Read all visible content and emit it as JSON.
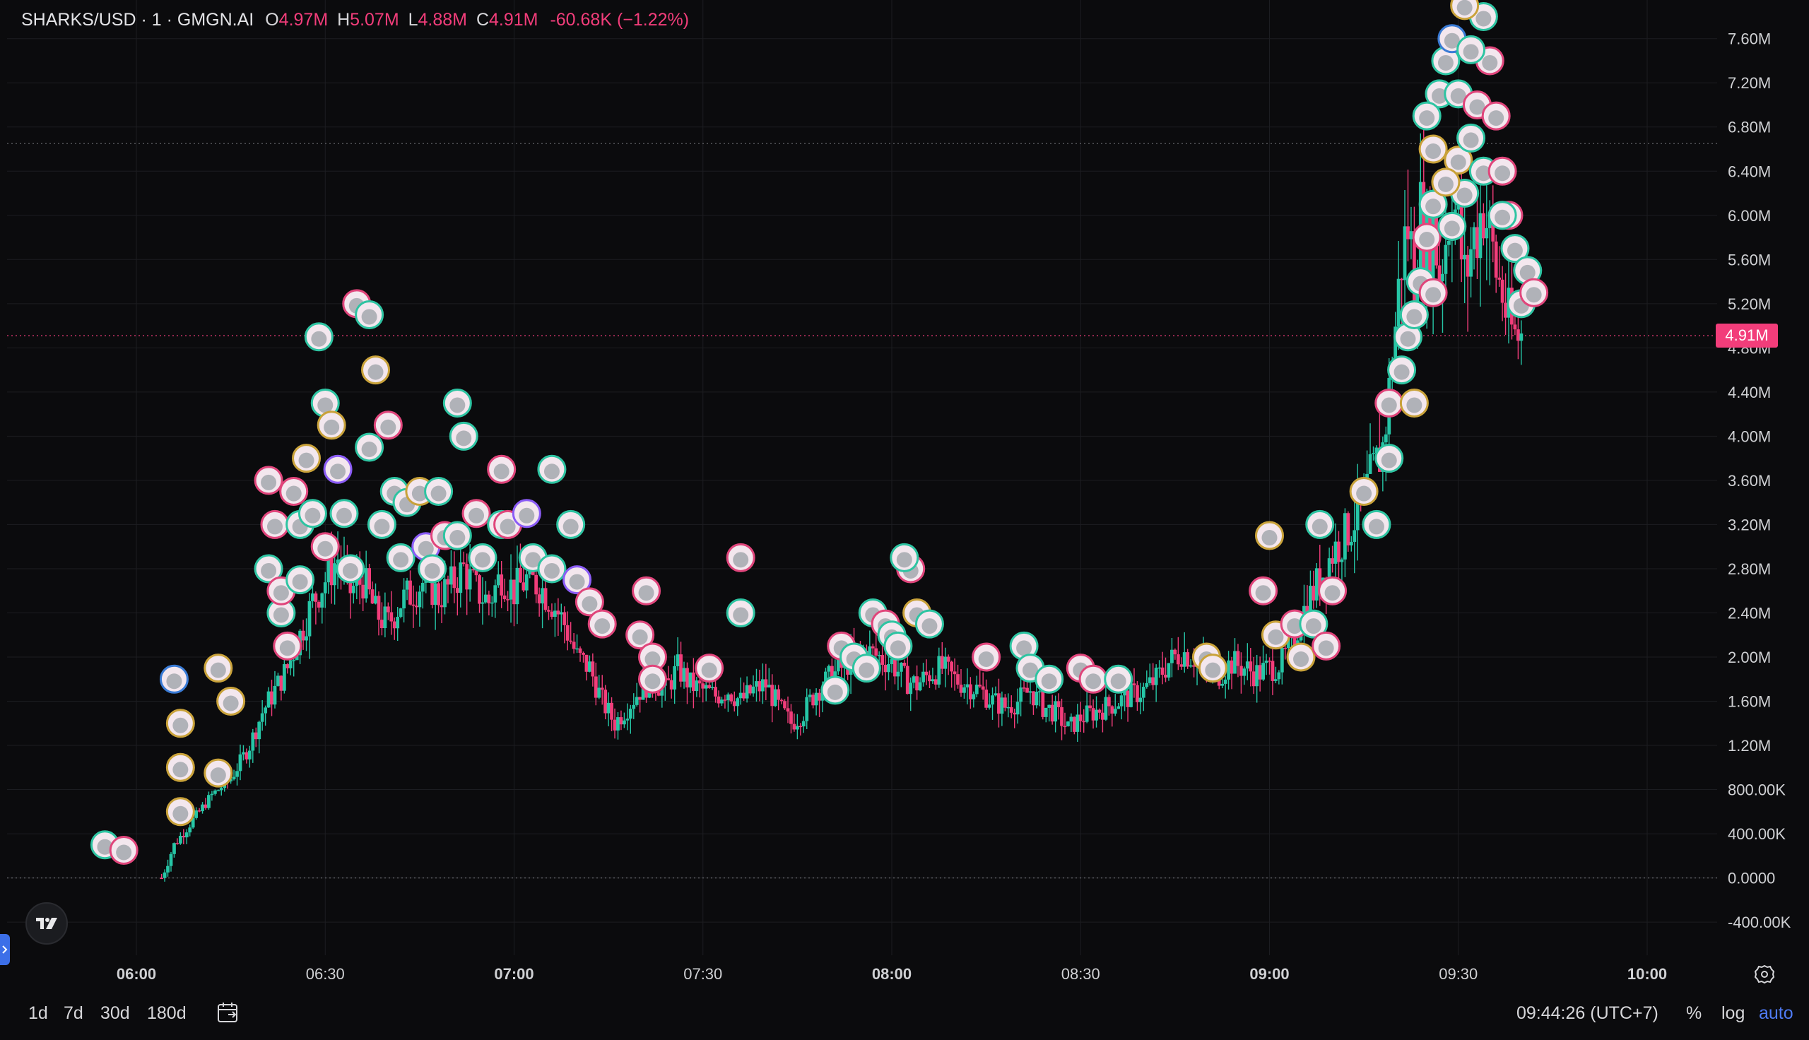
{
  "header": {
    "symbol": "SHARKS/USD · 1 · GMGN.AI",
    "open_label": "O",
    "open_value": "4.97M",
    "high_label": "H",
    "high_value": "5.07M",
    "low_label": "L",
    "low_value": "4.88M",
    "close_label": "C",
    "close_value": "4.91M",
    "change": "-60.68K (−1.22%)"
  },
  "last_price_tag": "4.91M",
  "bottom": {
    "ranges": [
      "1d",
      "7d",
      "30d",
      "180d"
    ],
    "clock": "09:44:26 (UTC+7)",
    "percent": "%",
    "log": "log",
    "auto": "auto"
  },
  "colors": {
    "up": "#26c6a6",
    "down": "#f23d7a",
    "background": "#0b0b0d",
    "accent": "#4f7bf5"
  },
  "icons": [
    "tradingview-logo-icon",
    "calendar-goto-icon",
    "settings-gear-icon",
    "sidebar-toggle-icon"
  ],
  "chart_data": {
    "type": "candlestick",
    "title": "SHARKS/USD · 1 · GMGN.AI",
    "interval": "1 minute",
    "y_ticks": [
      "7.60M",
      "7.20M",
      "6.80M",
      "6.40M",
      "6.00M",
      "5.60M",
      "5.20M",
      "4.80M",
      "4.40M",
      "4.00M",
      "3.60M",
      "3.20M",
      "2.80M",
      "2.40M",
      "2.00M",
      "1.60M",
      "1.20M",
      "800.00K",
      "400.00K",
      "0.0000",
      "-400.00K"
    ],
    "y_tick_values": [
      7.6,
      7.2,
      6.8,
      6.4,
      6.0,
      5.6,
      5.2,
      4.8,
      4.4,
      4.0,
      3.6,
      3.2,
      2.8,
      2.4,
      2.0,
      1.6,
      1.2,
      0.8,
      0.4,
      0.0,
      -0.4
    ],
    "x_ticks": [
      "06:00",
      "06:30",
      "07:00",
      "07:30",
      "08:00",
      "08:30",
      "09:00",
      "09:30",
      "10:00"
    ],
    "x_ticks_bold": [
      true,
      false,
      true,
      false,
      true,
      false,
      true,
      false,
      true
    ],
    "x_tick_minutes": [
      360,
      390,
      420,
      450,
      480,
      510,
      540,
      570,
      600
    ],
    "ylim_millions": [
      -0.7,
      7.95
    ],
    "xlim_minutes": [
      340.5,
      611.5
    ],
    "last_price_millions": 4.91,
    "high_line_millions": 6.65,
    "grid": true,
    "price_path": [
      [
        364,
        0.0
      ],
      [
        366,
        0.3
      ],
      [
        368,
        0.45
      ],
      [
        370,
        0.6
      ],
      [
        372,
        0.75
      ],
      [
        375,
        0.9
      ],
      [
        378,
        1.2
      ],
      [
        380,
        1.5
      ],
      [
        382,
        1.7
      ],
      [
        384,
        1.9
      ],
      [
        386,
        2.2
      ],
      [
        388,
        2.5
      ],
      [
        390,
        2.7
      ],
      [
        392,
        2.9
      ],
      [
        394,
        2.6
      ],
      [
        396,
        2.7
      ],
      [
        398,
        2.4
      ],
      [
        400,
        2.3
      ],
      [
        402,
        2.5
      ],
      [
        404,
        2.6
      ],
      [
        406,
        2.7
      ],
      [
        408,
        2.55
      ],
      [
        410,
        2.65
      ],
      [
        412,
        2.8
      ],
      [
        414,
        2.6
      ],
      [
        416,
        2.5
      ],
      [
        418,
        2.75
      ],
      [
        420,
        2.6
      ],
      [
        422,
        2.7
      ],
      [
        424,
        2.65
      ],
      [
        426,
        2.5
      ],
      [
        428,
        2.3
      ],
      [
        430,
        2.0
      ],
      [
        432,
        1.9
      ],
      [
        434,
        1.6
      ],
      [
        436,
        1.4
      ],
      [
        438,
        1.55
      ],
      [
        440,
        1.7
      ],
      [
        442,
        1.8
      ],
      [
        444,
        1.7
      ],
      [
        446,
        1.9
      ],
      [
        448,
        1.75
      ],
      [
        450,
        1.7
      ],
      [
        452,
        1.65
      ],
      [
        454,
        1.7
      ],
      [
        456,
        1.6
      ],
      [
        458,
        1.7
      ],
      [
        460,
        1.75
      ],
      [
        462,
        1.55
      ],
      [
        464,
        1.4
      ],
      [
        466,
        1.5
      ],
      [
        468,
        1.7
      ],
      [
        470,
        1.8
      ],
      [
        472,
        1.9
      ],
      [
        474,
        2.0
      ],
      [
        476,
        2.05
      ],
      [
        478,
        2.0
      ],
      [
        480,
        1.95
      ],
      [
        482,
        1.8
      ],
      [
        484,
        1.75
      ],
      [
        486,
        1.85
      ],
      [
        488,
        1.9
      ],
      [
        490,
        1.8
      ],
      [
        492,
        1.75
      ],
      [
        494,
        1.7
      ],
      [
        496,
        1.6
      ],
      [
        498,
        1.55
      ],
      [
        500,
        1.6
      ],
      [
        502,
        1.7
      ],
      [
        504,
        1.55
      ],
      [
        506,
        1.5
      ],
      [
        508,
        1.35
      ],
      [
        510,
        1.45
      ],
      [
        512,
        1.5
      ],
      [
        514,
        1.55
      ],
      [
        516,
        1.6
      ],
      [
        518,
        1.65
      ],
      [
        520,
        1.7
      ],
      [
        522,
        1.8
      ],
      [
        524,
        1.95
      ],
      [
        526,
        2.05
      ],
      [
        528,
        2.0
      ],
      [
        530,
        1.9
      ],
      [
        532,
        1.85
      ],
      [
        534,
        1.95
      ],
      [
        536,
        1.9
      ],
      [
        538,
        1.85
      ],
      [
        540,
        1.9
      ],
      [
        542,
        1.95
      ],
      [
        544,
        2.2
      ],
      [
        546,
        2.5
      ],
      [
        548,
        2.7
      ],
      [
        550,
        2.95
      ],
      [
        552,
        3.1
      ],
      [
        554,
        3.3
      ],
      [
        556,
        3.6
      ],
      [
        558,
        3.9
      ],
      [
        559,
        4.4
      ],
      [
        560,
        5.0
      ],
      [
        561,
        5.6
      ],
      [
        562,
        5.9
      ],
      [
        563,
        5.5
      ],
      [
        564,
        6.0
      ],
      [
        565,
        5.7
      ],
      [
        566,
        5.9
      ],
      [
        567,
        5.5
      ],
      [
        568,
        5.8
      ],
      [
        569,
        6.2
      ],
      [
        570,
        5.9
      ],
      [
        571,
        5.4
      ],
      [
        572,
        5.7
      ],
      [
        573,
        5.9
      ],
      [
        574,
        6.1
      ],
      [
        575,
        5.8
      ],
      [
        576,
        5.5
      ],
      [
        577,
        5.3
      ],
      [
        578,
        5.0
      ],
      [
        579,
        4.9
      ],
      [
        580,
        4.91
      ]
    ],
    "markers": [
      [
        355,
        0.3,
        "#2ec4a2"
      ],
      [
        358,
        0.25,
        "#e0457b"
      ],
      [
        366,
        1.8,
        "#3a7bd5"
      ],
      [
        367,
        1.4,
        "#c9a23a"
      ],
      [
        367,
        1.0,
        "#c9a23a"
      ],
      [
        367,
        0.6,
        "#c9a23a"
      ],
      [
        373,
        0.95,
        "#c9a23a"
      ],
      [
        373,
        1.9,
        "#c9a23a"
      ],
      [
        375,
        1.6,
        "#c9a23a"
      ],
      [
        381,
        3.6,
        "#e0457b"
      ],
      [
        382,
        3.2,
        "#e0457b"
      ],
      [
        381,
        2.8,
        "#2ec4a2"
      ],
      [
        383,
        2.4,
        "#2ec4a2"
      ],
      [
        384,
        2.1,
        "#e0457b"
      ],
      [
        383,
        2.6,
        "#e0457b"
      ],
      [
        385,
        3.5,
        "#e0457b"
      ],
      [
        386,
        3.2,
        "#2ec4a2"
      ],
      [
        386,
        2.7,
        "#2ec4a2"
      ],
      [
        387,
        3.8,
        "#c9a23a"
      ],
      [
        388,
        3.3,
        "#2ec4a2"
      ],
      [
        390,
        3.0,
        "#e0457b"
      ],
      [
        389,
        4.9,
        "#2ec4a2"
      ],
      [
        390,
        4.3,
        "#2ec4a2"
      ],
      [
        391,
        4.1,
        "#c9a23a"
      ],
      [
        392,
        3.7,
        "#8b5cf6"
      ],
      [
        393,
        3.3,
        "#2ec4a2"
      ],
      [
        394,
        2.8,
        "#2ec4a2"
      ],
      [
        395,
        5.2,
        "#e0457b"
      ],
      [
        397,
        5.1,
        "#2ec4a2"
      ],
      [
        398,
        4.6,
        "#c9a23a"
      ],
      [
        397,
        3.9,
        "#2ec4a2"
      ],
      [
        399,
        3.2,
        "#2ec4a2"
      ],
      [
        400,
        4.1,
        "#e0457b"
      ],
      [
        401,
        3.5,
        "#2ec4a2"
      ],
      [
        402,
        2.9,
        "#2ec4a2"
      ],
      [
        403,
        3.4,
        "#2ec4a2"
      ],
      [
        405,
        3.5,
        "#c9a23a"
      ],
      [
        406,
        3.0,
        "#8b5cf6"
      ],
      [
        407,
        2.8,
        "#2ec4a2"
      ],
      [
        408,
        3.5,
        "#2ec4a2"
      ],
      [
        409,
        3.1,
        "#e0457b"
      ],
      [
        411,
        3.1,
        "#2ec4a2"
      ],
      [
        411,
        4.3,
        "#2ec4a2"
      ],
      [
        412,
        4.0,
        "#2ec4a2"
      ],
      [
        414,
        3.3,
        "#e0457b"
      ],
      [
        415,
        2.9,
        "#2ec4a2"
      ],
      [
        418,
        3.2,
        "#2ec4a2"
      ],
      [
        418,
        3.7,
        "#e0457b"
      ],
      [
        419,
        3.2,
        "#e0457b"
      ],
      [
        422,
        3.3,
        "#8b5cf6"
      ],
      [
        423,
        2.9,
        "#2ec4a2"
      ],
      [
        426,
        3.7,
        "#2ec4a2"
      ],
      [
        426,
        2.8,
        "#2ec4a2"
      ],
      [
        429,
        3.2,
        "#2ec4a2"
      ],
      [
        430,
        2.7,
        "#8b5cf6"
      ],
      [
        432,
        2.5,
        "#e0457b"
      ],
      [
        434,
        2.3,
        "#e0457b"
      ],
      [
        441,
        2.6,
        "#e0457b"
      ],
      [
        440,
        2.2,
        "#e0457b"
      ],
      [
        442,
        2.0,
        "#e0457b"
      ],
      [
        442,
        1.8,
        "#e0457b"
      ],
      [
        451,
        1.9,
        "#e0457b"
      ],
      [
        456,
        2.9,
        "#e0457b"
      ],
      [
        456,
        2.4,
        "#2ec4a2"
      ],
      [
        471,
        1.7,
        "#2ec4a2"
      ],
      [
        472,
        2.1,
        "#e0457b"
      ],
      [
        474,
        2.0,
        "#2ec4a2"
      ],
      [
        476,
        1.9,
        "#2ec4a2"
      ],
      [
        477,
        2.4,
        "#2ec4a2"
      ],
      [
        479,
        2.3,
        "#e0457b"
      ],
      [
        480,
        2.2,
        "#2ec4a2"
      ],
      [
        481,
        2.1,
        "#2ec4a2"
      ],
      [
        484,
        2.4,
        "#c9a23a"
      ],
      [
        486,
        2.3,
        "#2ec4a2"
      ],
      [
        483,
        2.8,
        "#e0457b"
      ],
      [
        482,
        2.9,
        "#2ec4a2"
      ],
      [
        495,
        2.0,
        "#e0457b"
      ],
      [
        501,
        2.1,
        "#2ec4a2"
      ],
      [
        502,
        1.9,
        "#2ec4a2"
      ],
      [
        505,
        1.8,
        "#2ec4a2"
      ],
      [
        510,
        1.9,
        "#e0457b"
      ],
      [
        512,
        1.8,
        "#e0457b"
      ],
      [
        516,
        1.8,
        "#2ec4a2"
      ],
      [
        530,
        2.0,
        "#c9a23a"
      ],
      [
        531,
        1.9,
        "#c9a23a"
      ],
      [
        539,
        2.6,
        "#e0457b"
      ],
      [
        540,
        3.1,
        "#c9a23a"
      ],
      [
        541,
        2.2,
        "#c9a23a"
      ],
      [
        544,
        2.3,
        "#e0457b"
      ],
      [
        545,
        2.0,
        "#c9a23a"
      ],
      [
        548,
        3.2,
        "#2ec4a2"
      ],
      [
        550,
        2.6,
        "#e0457b"
      ],
      [
        547,
        2.3,
        "#2ec4a2"
      ],
      [
        549,
        2.1,
        "#e0457b"
      ],
      [
        555,
        3.5,
        "#c9a23a"
      ],
      [
        557,
        3.2,
        "#2ec4a2"
      ],
      [
        559,
        3.8,
        "#2ec4a2"
      ],
      [
        559,
        4.3,
        "#e0457b"
      ],
      [
        561,
        4.6,
        "#2ec4a2"
      ],
      [
        562,
        4.9,
        "#2ec4a2"
      ],
      [
        563,
        5.1,
        "#2ec4a2"
      ],
      [
        564,
        5.4,
        "#2ec4a2"
      ],
      [
        565,
        5.8,
        "#e0457b"
      ],
      [
        566,
        6.1,
        "#2ec4a2"
      ],
      [
        566,
        6.6,
        "#c9a23a"
      ],
      [
        567,
        7.1,
        "#2ec4a2"
      ],
      [
        568,
        7.4,
        "#2ec4a2"
      ],
      [
        569,
        7.6,
        "#3a7bd5"
      ],
      [
        570,
        7.1,
        "#2ec4a2"
      ],
      [
        570,
        6.5,
        "#c9a23a"
      ],
      [
        571,
        6.2,
        "#2ec4a2"
      ],
      [
        572,
        6.7,
        "#2ec4a2"
      ],
      [
        573,
        7.0,
        "#e0457b"
      ],
      [
        574,
        6.4,
        "#2ec4a2"
      ],
      [
        575,
        7.4,
        "#e0457b"
      ],
      [
        576,
        6.9,
        "#e0457b"
      ],
      [
        577,
        6.4,
        "#e0457b"
      ],
      [
        578,
        6.0,
        "#e0457b"
      ],
      [
        579,
        5.7,
        "#2ec4a2"
      ],
      [
        580,
        5.2,
        "#2ec4a2"
      ],
      [
        581,
        5.5,
        "#2ec4a2"
      ],
      [
        582,
        5.3,
        "#e0457b"
      ],
      [
        577,
        6.0,
        "#2ec4a2"
      ],
      [
        572,
        7.5,
        "#2ec4a2"
      ],
      [
        574,
        7.8,
        "#2ec4a2"
      ],
      [
        571,
        7.9,
        "#c9a23a"
      ],
      [
        568,
        6.3,
        "#c9a23a"
      ],
      [
        565,
        6.9,
        "#2ec4a2"
      ],
      [
        569,
        5.9,
        "#2ec4a2"
      ],
      [
        566,
        5.3,
        "#e0457b"
      ],
      [
        563,
        4.3,
        "#c9a23a"
      ]
    ]
  }
}
